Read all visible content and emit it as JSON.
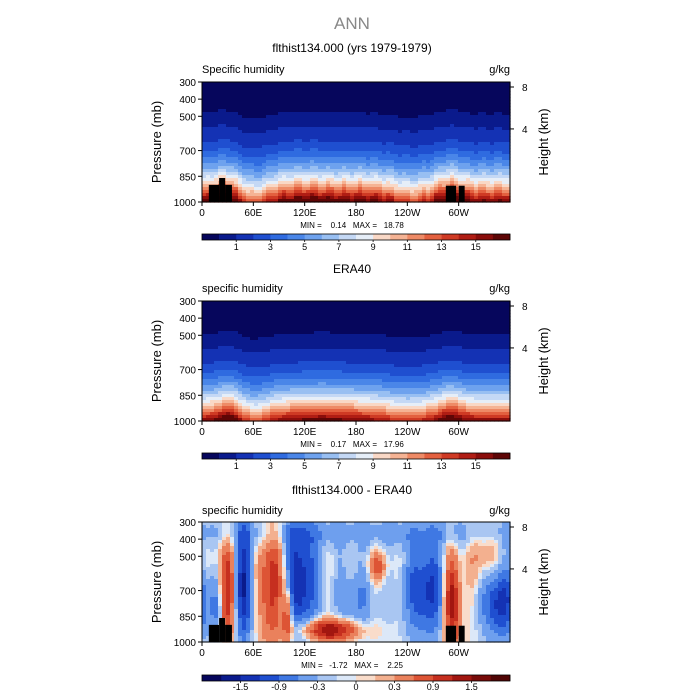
{
  "page_title": "ANN",
  "chart_data": [
    {
      "type": "heatmap",
      "title": "flthist134.000 (yrs 1979-1979)",
      "variable_label": "Specific humidity",
      "units": "g/kg",
      "ylabel": "Pressure (mb)",
      "ylabel_right": "Height (km)",
      "x_ticks": [
        "0",
        "60E",
        "120E",
        "180",
        "120W",
        "60W"
      ],
      "x_tick_values": [
        0,
        60,
        120,
        180,
        240,
        300
      ],
      "xlim": [
        0,
        360
      ],
      "y_ticks": [
        "300",
        "400",
        "500",
        "700",
        "850",
        "1000"
      ],
      "y_tick_values": [
        300,
        400,
        500,
        700,
        850,
        1000
      ],
      "ylim": [
        1000,
        300
      ],
      "height_ticks": [
        "8",
        "4"
      ],
      "height_tick_values": [
        8,
        4
      ],
      "stats_text": "MIN =    0.14   MAX =   18.78",
      "min": 0.14,
      "max": 18.78,
      "colorbar_labels": [
        "1",
        "3",
        "5",
        "7",
        "9",
        "11",
        "13",
        "15"
      ],
      "colorbar_levels": [
        1,
        3,
        5,
        7,
        9,
        11,
        13,
        15
      ],
      "levels": [
        0.5,
        1,
        2,
        3,
        4,
        5,
        6,
        7,
        8,
        9,
        10,
        11,
        12,
        13,
        14,
        15,
        16
      ],
      "colors": [
        "#06065c",
        "#0a1a8c",
        "#1432b4",
        "#1f4fd0",
        "#2f6be0",
        "#4a86e8",
        "#6ea2ee",
        "#98bff2",
        "#c4d8f5",
        "#e6eef8",
        "#f9d8c6",
        "#f5b394",
        "#ee8a66",
        "#e3603f",
        "#cf3a24",
        "#b01d14",
        "#8a0d0b",
        "#5e0606"
      ],
      "terrain": [
        {
          "lon_start": 8,
          "lon_end": 20,
          "pressure_top": 900
        },
        {
          "lon_start": 20,
          "lon_end": 27,
          "pressure_top": 860
        },
        {
          "lon_start": 27,
          "lon_end": 35,
          "pressure_top": 900
        },
        {
          "lon_start": 285,
          "lon_end": 297,
          "pressure_top": 905
        },
        {
          "lon_start": 300,
          "lon_end": 307,
          "pressure_top": 905
        }
      ]
    },
    {
      "type": "heatmap",
      "title": "ERA40",
      "variable_label": "specific humidity",
      "units": "g/kg",
      "ylabel": "Pressure (mb)",
      "ylabel_right": "Height (km)",
      "x_ticks": [
        "0",
        "60E",
        "120E",
        "180",
        "120W",
        "60W"
      ],
      "x_tick_values": [
        0,
        60,
        120,
        180,
        240,
        300
      ],
      "xlim": [
        0,
        360
      ],
      "y_ticks": [
        "300",
        "400",
        "500",
        "700",
        "850",
        "1000"
      ],
      "y_tick_values": [
        300,
        400,
        500,
        700,
        850,
        1000
      ],
      "ylim": [
        1000,
        300
      ],
      "height_ticks": [
        "8",
        "4"
      ],
      "height_tick_values": [
        8,
        4
      ],
      "stats_text": "MIN =    0.17   MAX =   17.96",
      "min": 0.17,
      "max": 17.96,
      "colorbar_labels": [
        "1",
        "3",
        "5",
        "7",
        "9",
        "11",
        "13",
        "15"
      ],
      "colorbar_levels": [
        1,
        3,
        5,
        7,
        9,
        11,
        13,
        15
      ],
      "levels": [
        0.5,
        1,
        2,
        3,
        4,
        5,
        6,
        7,
        8,
        9,
        10,
        11,
        12,
        13,
        14,
        15,
        16
      ],
      "colors": [
        "#06065c",
        "#0a1a8c",
        "#1432b4",
        "#1f4fd0",
        "#2f6be0",
        "#4a86e8",
        "#6ea2ee",
        "#98bff2",
        "#c4d8f5",
        "#e6eef8",
        "#f9d8c6",
        "#f5b394",
        "#ee8a66",
        "#e3603f",
        "#cf3a24",
        "#b01d14",
        "#8a0d0b",
        "#5e0606"
      ],
      "terrain": []
    },
    {
      "type": "heatmap",
      "title": "flthist134.000 - ERA40",
      "variable_label": "specific humidity",
      "units": "g/kg",
      "ylabel": "Pressure (mb)",
      "ylabel_right": "Height (km)",
      "x_ticks": [
        "0",
        "60E",
        "120E",
        "180",
        "120W",
        "60W"
      ],
      "x_tick_values": [
        0,
        60,
        120,
        180,
        240,
        300
      ],
      "xlim": [
        0,
        360
      ],
      "y_ticks": [
        "300",
        "400",
        "500",
        "700",
        "850",
        "1000"
      ],
      "y_tick_values": [
        300,
        400,
        500,
        700,
        850,
        1000
      ],
      "ylim": [
        1000,
        300
      ],
      "height_ticks": [
        "8",
        "4"
      ],
      "height_tick_values": [
        8,
        4
      ],
      "stats_text": "MIN =   -1.72   MAX =    2.25",
      "min": -1.72,
      "max": 2.25,
      "colorbar_labels": [
        "-1.5",
        "-0.9",
        "-0.3",
        "0",
        "0.3",
        "0.9",
        "1.5"
      ],
      "colorbar_levels": [
        -1.5,
        -0.9,
        -0.3,
        0,
        0.3,
        0.9,
        1.5
      ],
      "levels": [
        -1.8,
        -1.5,
        -1.2,
        -0.9,
        -0.6,
        -0.3,
        -0.1,
        0,
        0.1,
        0.3,
        0.6,
        0.9,
        1.2,
        1.5,
        1.8
      ],
      "colors": [
        "#06065c",
        "#0a1a8c",
        "#1432b4",
        "#1f4fd0",
        "#3f78e3",
        "#6e9fee",
        "#a9c6f2",
        "#dce8f8",
        "#f9dcca",
        "#f3b08f",
        "#ea815c",
        "#dd5435",
        "#c62f1f",
        "#a21610",
        "#780b09",
        "#500505"
      ],
      "terrain": [
        {
          "lon_start": 8,
          "lon_end": 20,
          "pressure_top": 900
        },
        {
          "lon_start": 20,
          "lon_end": 27,
          "pressure_top": 860
        },
        {
          "lon_start": 27,
          "lon_end": 35,
          "pressure_top": 900
        },
        {
          "lon_start": 285,
          "lon_end": 297,
          "pressure_top": 905
        },
        {
          "lon_start": 300,
          "lon_end": 307,
          "pressure_top": 905
        }
      ]
    }
  ]
}
